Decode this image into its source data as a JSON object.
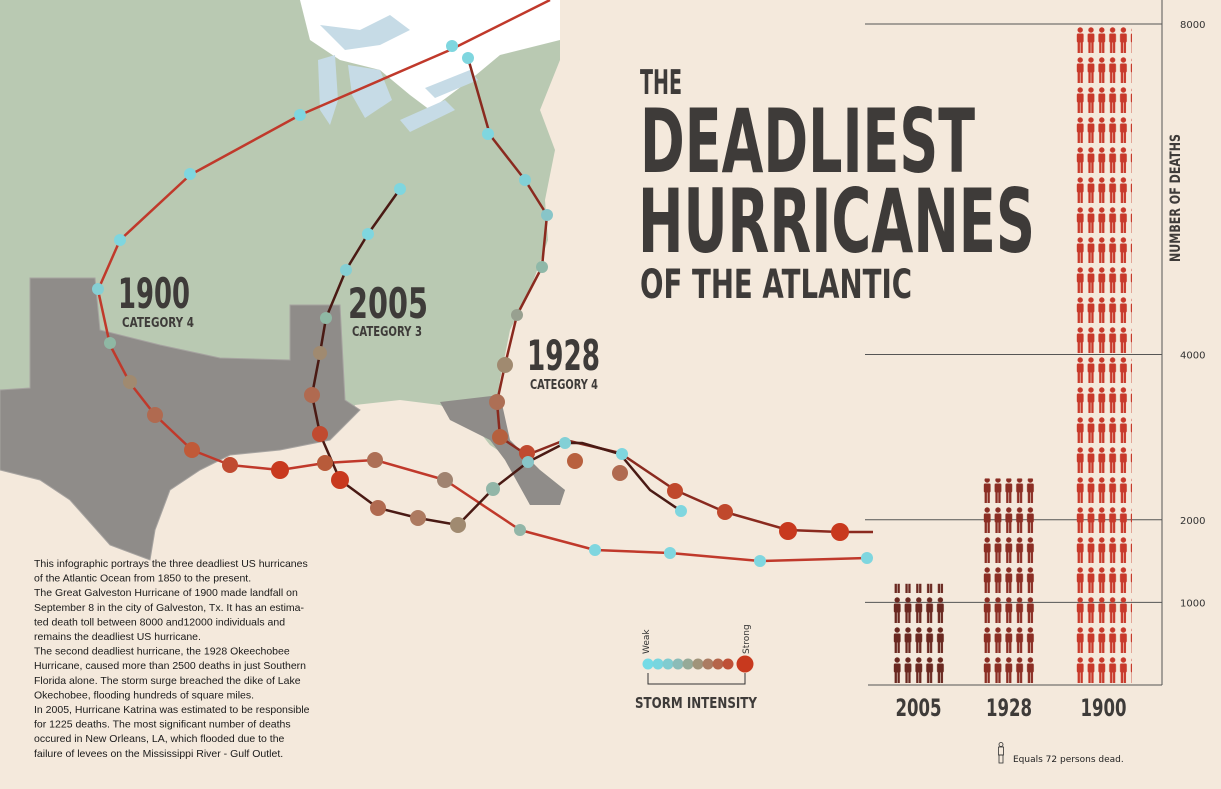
{
  "title": {
    "line1": "THE",
    "line2": "DEADLIEST",
    "line3": "HURRICANES",
    "line4": "OF THE ATLANTIC"
  },
  "map_labels": [
    {
      "year": "1900",
      "category": "CATEGORY 4"
    },
    {
      "year": "2005",
      "category": "CATEGORY 3"
    },
    {
      "year": "1928",
      "category": "CATEGORY 4"
    }
  ],
  "description": [
    "This infographic portrays the three deadliest US hurricanes",
    "of the Atlantic Ocean from 1850 to the present.",
    "The Great Galveston Hurricane of 1900 made landfall on",
    "September 8 in the city of Galveston, Tx. It has an estima-",
    "ted death toll between 8000 and12000 individuals and",
    "remains the deadliest US hurricane.",
    "The second deadliest hurricane, the 1928 Okeechobee",
    "Hurricane, caused more than 2500 deaths in just Southern",
    "Florida alone. The storm surge breached the dike of Lake",
    "Okechobee, flooding hundreds of square miles.",
    "In 2005, Hurricane Katrina was estimated to be responsible",
    "for 1225 deaths. The most significant number of deaths",
    "occured in New Orleans, LA, which flooded due to the",
    "failure of levees on the Mississippi River - Gulf Outlet."
  ],
  "legend": {
    "weak": "Weak",
    "strong": "Strong",
    "title": "STORM INTENSITY"
  },
  "chart_data": {
    "type": "bar",
    "y_label": "NUMBER OF DEATHS",
    "categories": [
      "2005",
      "1928",
      "1900"
    ],
    "values": [
      1225,
      2500,
      8000
    ],
    "colors": [
      "#6a2820",
      "#8b2e24",
      "#c8392b"
    ],
    "ylim": [
      0,
      8000
    ],
    "yticks": [
      1000,
      2000,
      4000,
      8000
    ],
    "note": "Equals 72 persons dead."
  }
}
